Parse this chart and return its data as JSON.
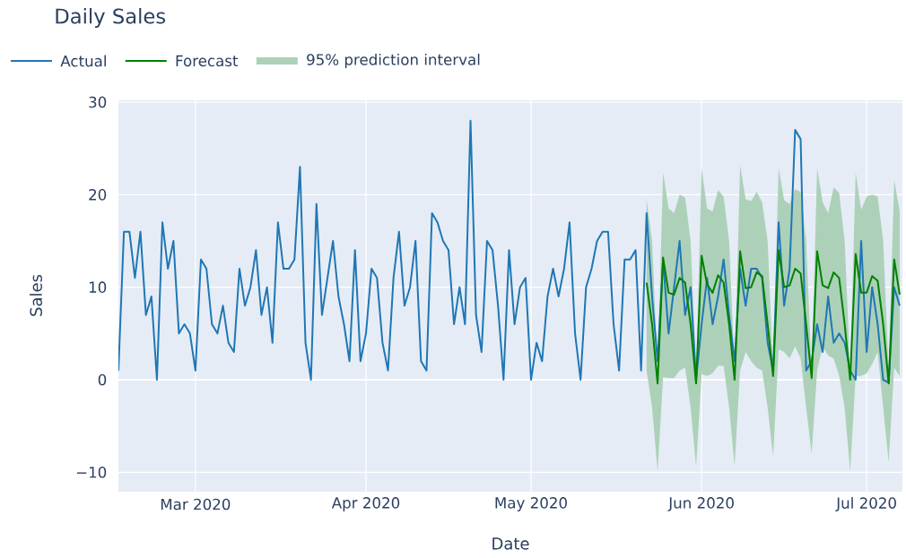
{
  "chart_data": {
    "type": "line",
    "title": "Daily Sales",
    "xlabel": "Date",
    "ylabel": "Sales",
    "x": [
      "2020-02-16",
      "2020-02-17",
      "2020-02-18",
      "2020-02-19",
      "2020-02-20",
      "2020-02-21",
      "2020-02-22",
      "2020-02-23",
      "2020-02-24",
      "2020-02-25",
      "2020-02-26",
      "2020-02-27",
      "2020-02-28",
      "2020-02-29",
      "2020-03-01",
      "2020-03-02",
      "2020-03-03",
      "2020-03-04",
      "2020-03-05",
      "2020-03-06",
      "2020-03-07",
      "2020-03-08",
      "2020-03-09",
      "2020-03-10",
      "2020-03-11",
      "2020-03-12",
      "2020-03-13",
      "2020-03-14",
      "2020-03-15",
      "2020-03-16",
      "2020-03-17",
      "2020-03-18",
      "2020-03-19",
      "2020-03-20",
      "2020-03-21",
      "2020-03-22",
      "2020-03-23",
      "2020-03-24",
      "2020-03-25",
      "2020-03-26",
      "2020-03-27",
      "2020-03-28",
      "2020-03-29",
      "2020-03-30",
      "2020-03-31",
      "2020-04-01",
      "2020-04-02",
      "2020-04-03",
      "2020-04-04",
      "2020-04-05",
      "2020-04-06",
      "2020-04-07",
      "2020-04-08",
      "2020-04-09",
      "2020-04-10",
      "2020-04-11",
      "2020-04-12",
      "2020-04-13",
      "2020-04-14",
      "2020-04-15",
      "2020-04-16",
      "2020-04-17",
      "2020-04-18",
      "2020-04-19",
      "2020-04-20",
      "2020-04-21",
      "2020-04-22",
      "2020-04-23",
      "2020-04-24",
      "2020-04-25",
      "2020-04-26",
      "2020-04-27",
      "2020-04-28",
      "2020-04-29",
      "2020-04-30",
      "2020-05-01",
      "2020-05-02",
      "2020-05-03",
      "2020-05-04",
      "2020-05-05",
      "2020-05-06",
      "2020-05-07",
      "2020-05-08",
      "2020-05-09",
      "2020-05-10",
      "2020-05-11",
      "2020-05-12",
      "2020-05-13",
      "2020-05-14",
      "2020-05-15",
      "2020-05-16",
      "2020-05-17",
      "2020-05-18",
      "2020-05-19",
      "2020-05-20",
      "2020-05-21",
      "2020-05-22",
      "2020-05-23",
      "2020-05-24",
      "2020-05-25",
      "2020-05-26",
      "2020-05-27",
      "2020-05-28",
      "2020-05-29",
      "2020-05-30",
      "2020-05-31",
      "2020-06-01",
      "2020-06-02",
      "2020-06-03",
      "2020-06-04",
      "2020-06-05",
      "2020-06-06",
      "2020-06-07",
      "2020-06-08",
      "2020-06-09",
      "2020-06-10",
      "2020-06-11",
      "2020-06-12",
      "2020-06-13",
      "2020-06-14",
      "2020-06-15",
      "2020-06-16",
      "2020-06-17",
      "2020-06-18",
      "2020-06-19",
      "2020-06-20",
      "2020-06-21",
      "2020-06-22",
      "2020-06-23",
      "2020-06-24",
      "2020-06-25",
      "2020-06-26",
      "2020-06-27",
      "2020-06-28",
      "2020-06-29",
      "2020-06-30",
      "2020-07-01",
      "2020-07-02",
      "2020-07-03",
      "2020-07-04",
      "2020-07-05",
      "2020-07-06",
      "2020-07-07"
    ],
    "series": [
      {
        "name": "Actual",
        "color": "#1f77b4",
        "values": [
          1,
          16,
          16,
          11,
          16,
          7,
          9,
          0,
          17,
          12,
          15,
          5,
          6,
          5,
          1,
          13,
          12,
          6,
          5,
          8,
          4,
          3,
          12,
          8,
          10,
          14,
          7,
          10,
          4,
          17,
          12,
          12,
          13,
          23,
          4,
          0,
          19,
          7,
          11,
          15,
          9,
          6,
          2,
          14,
          2,
          5,
          12,
          11,
          4,
          1,
          11,
          16,
          8,
          10,
          15,
          2,
          1,
          18,
          17,
          15,
          14,
          6,
          10,
          6,
          28,
          7,
          3,
          15,
          14,
          8,
          0,
          14,
          6,
          10,
          11,
          0,
          4,
          2,
          9,
          12,
          9,
          12,
          17,
          5,
          0,
          10,
          12,
          15,
          16,
          16,
          6,
          1,
          13,
          13,
          14,
          1,
          18,
          9,
          2,
          13,
          5,
          10,
          15,
          7,
          10,
          0,
          6,
          11,
          6,
          9,
          13,
          7,
          2,
          12,
          8,
          12,
          12,
          11,
          4,
          1,
          17,
          8,
          12,
          27,
          26,
          1,
          2,
          6,
          3,
          9,
          4,
          5,
          4,
          1,
          0,
          15,
          3,
          10,
          6,
          0,
          -0.3,
          10,
          8
        ]
      },
      {
        "name": "Forecast",
        "color": "#008000",
        "x": [
          "2020-05-22",
          "2020-05-23",
          "2020-05-24",
          "2020-05-25",
          "2020-05-26",
          "2020-05-27",
          "2020-05-28",
          "2020-05-29",
          "2020-05-30",
          "2020-05-31",
          "2020-06-01",
          "2020-06-02",
          "2020-06-03",
          "2020-06-04",
          "2020-06-05",
          "2020-06-06",
          "2020-06-07",
          "2020-06-08",
          "2020-06-09",
          "2020-06-10",
          "2020-06-11",
          "2020-06-12",
          "2020-06-13",
          "2020-06-14",
          "2020-06-15",
          "2020-06-16",
          "2020-06-17",
          "2020-06-18",
          "2020-06-19",
          "2020-06-20",
          "2020-06-21",
          "2020-06-22",
          "2020-06-23",
          "2020-06-24",
          "2020-06-25",
          "2020-06-26",
          "2020-06-27",
          "2020-06-28",
          "2020-06-29",
          "2020-06-30",
          "2020-07-01",
          "2020-07-02",
          "2020-07-03",
          "2020-07-04",
          "2020-07-05",
          "2020-07-06",
          "2020-07-07"
        ],
        "values": [
          10.5,
          6,
          -0.4,
          13.2,
          9.4,
          9.2,
          11,
          10.5,
          6,
          -0.4,
          13.4,
          10.3,
          9.4,
          11.3,
          10.5,
          6,
          0,
          13.9,
          9.9,
          10,
          11.6,
          11.2,
          6,
          0.4,
          14,
          10,
          10.2,
          12,
          11.5,
          6,
          0.2,
          13.9,
          10.2,
          9.9,
          11.6,
          11,
          6,
          0,
          13.6,
          9.4,
          9.4,
          11.2,
          10.7,
          6,
          -0.4,
          13,
          9.2
        ],
        "lower": [
          1,
          -3,
          -9.9,
          0.3,
          0.2,
          0.2,
          1,
          1.3,
          -3,
          -9.4,
          0.6,
          0.4,
          0.7,
          1.5,
          1.5,
          -3,
          -9.3,
          1,
          3,
          2,
          1.3,
          1,
          -3,
          -8.3,
          3.3,
          3,
          2.3,
          3.6,
          2.3,
          -3,
          -8,
          1,
          3.6,
          2.6,
          2.3,
          0.4,
          -3,
          -9.9,
          0.4,
          0.4,
          0.7,
          1.7,
          3,
          -3,
          -8.9,
          1.3,
          0.4
        ],
        "upper": [
          19.5,
          15,
          1,
          22.4,
          18.5,
          18,
          20,
          19.7,
          15,
          1,
          22.9,
          18.5,
          18.2,
          20.5,
          19.8,
          15,
          1,
          23.2,
          19.5,
          19.3,
          20.3,
          19.2,
          15,
          1,
          22.9,
          19.4,
          19,
          20.6,
          20.3,
          15,
          1,
          22.9,
          19.2,
          18,
          20.8,
          20.2,
          15,
          1,
          22.4,
          18.4,
          19.8,
          20,
          19.8,
          15,
          1,
          21.6,
          18.2
        ]
      }
    ],
    "xlim": [
      "2020-02-16",
      "2020-07-07T12:00"
    ],
    "ylim": [
      -12.1,
      30.2
    ],
    "xticks": [
      {
        "value": "2020-03-01",
        "label": "Mar 2020"
      },
      {
        "value": "2020-04-01",
        "label": "Apr 2020"
      },
      {
        "value": "2020-05-01",
        "label": "May 2020"
      },
      {
        "value": "2020-06-01",
        "label": "Jun 2020"
      },
      {
        "value": "2020-07-01",
        "label": "Jul 2020"
      }
    ],
    "yticks": [
      {
        "value": -10,
        "label": "−10"
      },
      0,
      10,
      20,
      30
    ],
    "annotations": [
      "95% prediction interval"
    ],
    "grid": true,
    "legend": "top left"
  }
}
